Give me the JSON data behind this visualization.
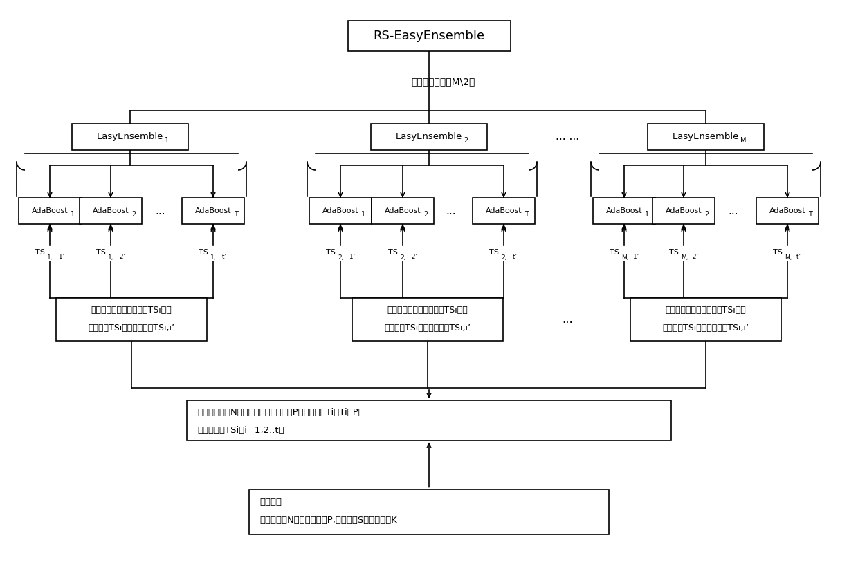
{
  "bg_color": "#ffffff",
  "line_color": "#000000",
  "box_color": "#ffffff",
  "font_color": "#000000",
  "title": "RS-EasyEnsemble",
  "select_text": "选择其中最好的M\\2个",
  "ee1_label": "EasyEnsemble",
  "ee1_sub": "1",
  "ee2_label": "EasyEnsemble",
  "ee2_sub": "2",
  "eeM_label": "EasyEnsemble",
  "eeM_sub": "M",
  "ee_dots": "... ...",
  "ada_label": "AdaBoost",
  "ada_dots": "...",
  "rand_text": "随机采样创建特征子空间TSi，映射到集合TSi上，得到集合TSi,i'",
  "rand_line2": "射到集合TSi上，得到集合TSi,i’",
  "rand_dots": "...",
  "split_line1": "将多数类集合N分成个大小等于少数类P的互斥子集Ti，Ti和P取",
  "split_line2": "并得到集合TSi（i=1,2..t）",
  "train_line1": "训练集：",
  "train_line2": "多数类集合N，少数类集合P,特征空间S，特征数盪K"
}
